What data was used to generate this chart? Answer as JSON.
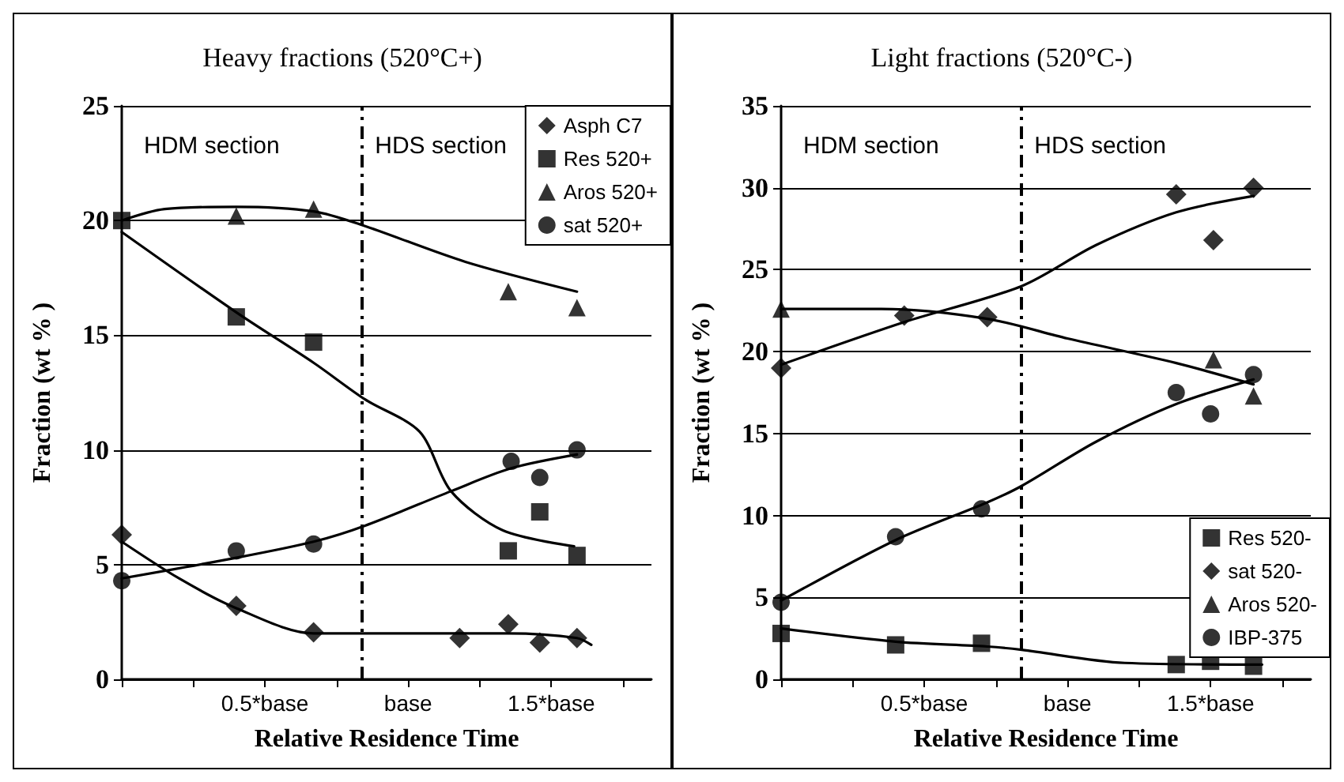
{
  "chart_data": [
    {
      "type": "scatter",
      "title": "Heavy fractions (520°C+)",
      "xlabel": "Relative Residence Time",
      "ylabel": "Fraction (wt % )",
      "xlim": [
        0,
        1.85
      ],
      "xticks": [
        {
          "value": 0,
          "label": null
        },
        {
          "value": 0.25,
          "label": null
        },
        {
          "value": 0.5,
          "label": "0.5*base"
        },
        {
          "value": 0.75,
          "label": null
        },
        {
          "value": 1,
          "label": "base"
        },
        {
          "value": 1.25,
          "label": null
        },
        {
          "value": 1.5,
          "label": "1.5*base"
        },
        {
          "value": 1.75,
          "label": null
        }
      ],
      "ylim": [
        0,
        25
      ],
      "yticks": [
        0,
        5,
        10,
        15,
        20,
        25
      ],
      "grid": "y",
      "legend": "top right",
      "annotations": [
        "HDM section",
        "HDS section"
      ],
      "ref_lines": [
        {
          "axis": "x",
          "value": 0.84,
          "label": null,
          "color": "#000000",
          "line_style": "dashed"
        }
      ],
      "series": [
        {
          "name": "Asph C7",
          "color": "#000000",
          "marker": "diamond",
          "x": [
            0,
            0.4,
            0.67,
            1.18,
            1.35,
            1.46,
            1.59
          ],
          "values": [
            6.3,
            3.2,
            2.05,
            1.8,
            2.4,
            1.6,
            1.8
          ]
        },
        {
          "name": "Res 520+",
          "color": "#000000",
          "marker": "square",
          "x": [
            0,
            0.4,
            0.67,
            1.35,
            1.46,
            1.59
          ],
          "values": [
            20,
            15.8,
            14.7,
            5.6,
            7.3,
            5.4
          ]
        },
        {
          "name": "Aros 520+",
          "color": "#000000",
          "marker": "triangle",
          "x": [
            0.4,
            0.67,
            1.35,
            1.59
          ],
          "values": [
            20.2,
            20.5,
            16.9,
            16.2
          ]
        },
        {
          "name": "sat 520+",
          "color": "#000000",
          "marker": "circle",
          "x": [
            0,
            0.4,
            0.67,
            1.36,
            1.46,
            1.59
          ],
          "values": [
            4.3,
            5.6,
            5.9,
            9.5,
            8.8,
            10.0
          ]
        },
        {
          "type": "line",
          "color": "#000000",
          "marker": "none",
          "x": [
            0,
            0.2,
            0.4,
            0.67,
            1.35,
            1.59,
            1.64
          ],
          "values": [
            6.0,
            4.4,
            3.1,
            2.0,
            2.0,
            1.8,
            1.5
          ]
        },
        {
          "type": "line",
          "color": "#000000",
          "marker": "none",
          "x": [
            0,
            0.4,
            0.67,
            0.85,
            1.04,
            1.15,
            1.33,
            1.58
          ],
          "values": [
            19.5,
            16.0,
            13.8,
            12.2,
            10.8,
            8.2,
            6.5,
            5.8
          ]
        },
        {
          "type": "line",
          "color": "#000000",
          "marker": "none",
          "x": [
            0,
            0.15,
            0.4,
            0.67,
            0.84,
            1.2,
            1.59
          ],
          "values": [
            20,
            20.5,
            20.6,
            20.4,
            19.8,
            18.2,
            16.9
          ]
        },
        {
          "type": "line",
          "color": "#000000",
          "marker": "none",
          "x": [
            0,
            0.4,
            0.67,
            0.85,
            1.15,
            1.36,
            1.59
          ],
          "values": [
            4.4,
            5.3,
            6.0,
            6.7,
            8.2,
            9.2,
            9.8
          ]
        }
      ]
    },
    {
      "type": "scatter",
      "title": "Light fractions (520°C-)",
      "xlabel": "Relative Residence Time",
      "ylabel": "Fraction (wt % )",
      "xlim": [
        0,
        1.85
      ],
      "xticks": [
        {
          "value": 0,
          "label": null
        },
        {
          "value": 0.25,
          "label": null
        },
        {
          "value": 0.5,
          "label": "0.5*base"
        },
        {
          "value": 0.75,
          "label": null
        },
        {
          "value": 1,
          "label": "base"
        },
        {
          "value": 1.25,
          "label": null
        },
        {
          "value": 1.5,
          "label": "1.5*base"
        },
        {
          "value": 1.75,
          "label": null
        }
      ],
      "ylim": [
        0,
        35
      ],
      "yticks": [
        0,
        5,
        10,
        15,
        20,
        25,
        30,
        35
      ],
      "grid": "y",
      "legend": "bottom right",
      "annotations": [
        "HDM section",
        "HDS section"
      ],
      "ref_lines": [
        {
          "axis": "x",
          "value": 0.84,
          "label": null,
          "color": "#000000",
          "line_style": "dashed"
        }
      ],
      "series": [
        {
          "name": "Res 520-",
          "color": "#000000",
          "marker": "square",
          "x": [
            0,
            0.4,
            0.7,
            1.38,
            1.5,
            1.65
          ],
          "values": [
            2.8,
            2.1,
            2.2,
            0.9,
            1.1,
            0.8
          ]
        },
        {
          "name": "sat 520-",
          "color": "#000000",
          "marker": "diamond",
          "x": [
            0,
            0.43,
            0.72,
            1.38,
            1.51,
            1.65
          ],
          "values": [
            19.0,
            22.2,
            22.1,
            29.6,
            26.8,
            30.0
          ]
        },
        {
          "name": "Aros 520-",
          "color": "#000000",
          "marker": "triangle",
          "x": [
            0,
            1.51,
            1.65
          ],
          "values": [
            22.6,
            19.5,
            17.3
          ]
        },
        {
          "name": "IBP-375",
          "color": "#000000",
          "marker": "circle",
          "x": [
            0,
            0.4,
            0.7,
            1.38,
            1.5,
            1.65
          ],
          "values": [
            4.7,
            8.7,
            10.4,
            17.5,
            16.2,
            18.6
          ]
        },
        {
          "type": "line",
          "color": "#000000",
          "marker": "none",
          "x": [
            0,
            0.4,
            0.72,
            0.84,
            1.2,
            1.68
          ],
          "values": [
            3.1,
            2.3,
            2.0,
            1.8,
            1.0,
            0.9
          ]
        },
        {
          "type": "line",
          "color": "#000000",
          "marker": "none",
          "x": [
            0,
            0.43,
            0.84,
            1.1,
            1.38,
            1.65
          ],
          "values": [
            19.2,
            21.8,
            24.0,
            26.5,
            28.5,
            29.5
          ]
        },
        {
          "type": "line",
          "color": "#000000",
          "marker": "none",
          "x": [
            0,
            0.35,
            0.72,
            1.0,
            1.38,
            1.65
          ],
          "values": [
            22.6,
            22.6,
            22.0,
            20.8,
            19.3,
            18.0
          ]
        },
        {
          "type": "line",
          "color": "#000000",
          "marker": "none",
          "x": [
            0,
            0.4,
            0.72,
            0.84,
            1.1,
            1.38,
            1.65
          ],
          "values": [
            4.8,
            8.5,
            10.8,
            11.8,
            14.5,
            16.8,
            18.3
          ]
        }
      ]
    }
  ]
}
